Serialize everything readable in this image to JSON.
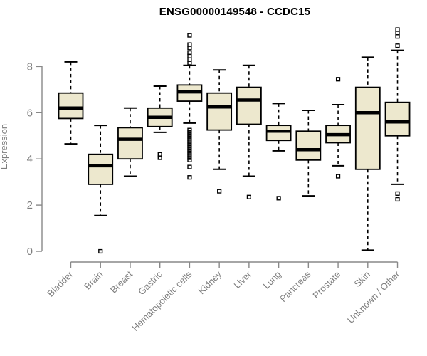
{
  "title": "ENSG00000149548 - CCDC15",
  "colors": {
    "background": "#ffffff",
    "box_fill": "#ede8ce",
    "box_border": "#000000",
    "median": "#000000",
    "whisker": "#000000",
    "outlier": "#000000",
    "axis_line": "#888888",
    "axis_text": "#7e7e7e",
    "title_text": "#000000"
  },
  "chart_data": {
    "type": "boxplot",
    "title": "ENSG00000149548 - CCDC15",
    "xlabel": "",
    "ylabel": "Expression",
    "ylim": [
      0,
      9.8
    ],
    "yticks": [
      0,
      2,
      4,
      6,
      8
    ],
    "grid": false,
    "legend": false,
    "categories": [
      "Bladder",
      "Brain",
      "Breast",
      "Gastric",
      "Hematopoietic cells",
      "Kidney",
      "Liver",
      "Lung",
      "Pancreas",
      "Prostate",
      "Skin",
      "Unknown / Other"
    ],
    "series": [
      {
        "label": "Bladder",
        "whisker_low": 4.65,
        "q1": 5.75,
        "median": 6.2,
        "q3": 6.85,
        "whisker_high": 8.2,
        "outliers": []
      },
      {
        "label": "Brain",
        "whisker_low": 1.55,
        "q1": 2.9,
        "median": 3.7,
        "q3": 4.2,
        "whisker_high": 5.45,
        "outliers": [
          0.0
        ]
      },
      {
        "label": "Breast",
        "whisker_low": 3.25,
        "q1": 4.0,
        "median": 4.85,
        "q3": 5.35,
        "whisker_high": 6.2,
        "outliers": []
      },
      {
        "label": "Gastric",
        "whisker_low": 5.15,
        "q1": 5.4,
        "median": 5.8,
        "q3": 6.2,
        "whisker_high": 7.15,
        "outliers": [
          4.2,
          4.05
        ]
      },
      {
        "label": "Hematopoietic cells",
        "whisker_low": 5.55,
        "q1": 6.5,
        "median": 6.9,
        "q3": 7.2,
        "whisker_high": 8.05,
        "outliers": [
          9.35,
          8.95,
          8.8,
          8.6,
          8.45,
          8.3,
          8.15,
          5.25,
          5.15,
          5.05,
          4.95,
          4.85,
          4.75,
          4.65,
          4.55,
          4.45,
          4.35,
          4.25,
          4.15,
          4.05,
          3.95,
          3.65,
          3.2
        ]
      },
      {
        "label": "Kidney",
        "whisker_low": 3.55,
        "q1": 5.25,
        "median": 6.25,
        "q3": 6.85,
        "whisker_high": 7.85,
        "outliers": [
          2.6
        ]
      },
      {
        "label": "Liver",
        "whisker_low": 3.25,
        "q1": 5.5,
        "median": 6.55,
        "q3": 7.1,
        "whisker_high": 8.05,
        "outliers": [
          2.35
        ]
      },
      {
        "label": "Lung",
        "whisker_low": 4.35,
        "q1": 4.8,
        "median": 5.2,
        "q3": 5.45,
        "whisker_high": 6.4,
        "outliers": [
          2.3
        ]
      },
      {
        "label": "Pancreas",
        "whisker_low": 2.4,
        "q1": 3.95,
        "median": 4.4,
        "q3": 5.2,
        "whisker_high": 6.1,
        "outliers": []
      },
      {
        "label": "Prostate",
        "whisker_low": 3.7,
        "q1": 4.7,
        "median": 5.05,
        "q3": 5.45,
        "whisker_high": 6.35,
        "outliers": [
          7.45,
          3.25
        ]
      },
      {
        "label": "Skin",
        "whisker_low": 0.05,
        "q1": 3.55,
        "median": 6.0,
        "q3": 7.1,
        "whisker_high": 8.4,
        "outliers": []
      },
      {
        "label": "Unknown / Other",
        "whisker_low": 2.9,
        "q1": 5.0,
        "median": 5.6,
        "q3": 6.45,
        "whisker_high": 8.7,
        "outliers": [
          9.6,
          9.45,
          9.3,
          8.9,
          2.5,
          2.25
        ]
      }
    ]
  }
}
